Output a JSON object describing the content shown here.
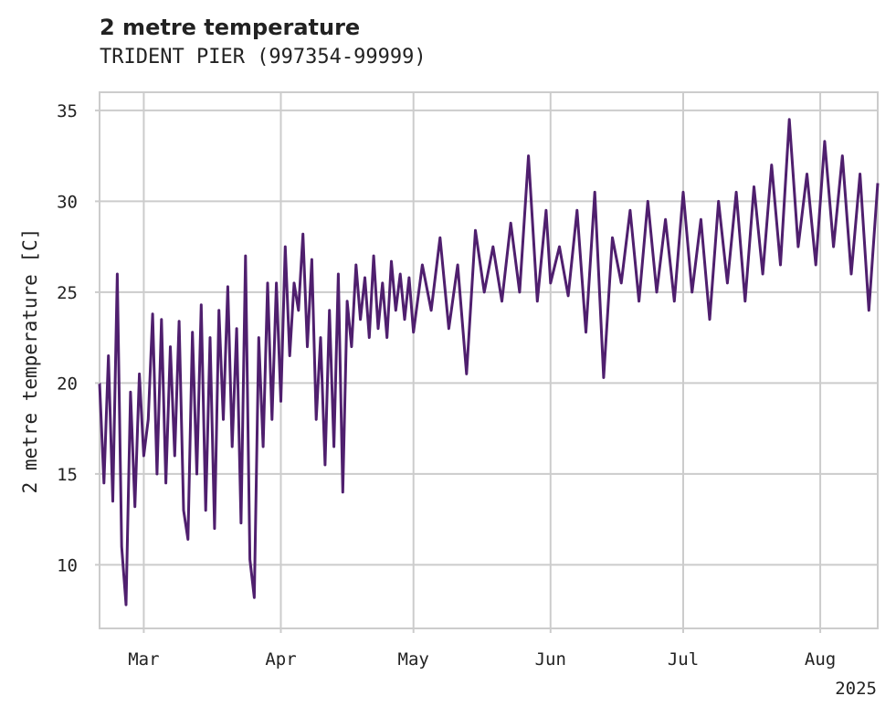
{
  "chart_data": {
    "type": "line",
    "title": "2 metre temperature",
    "subtitle": "TRIDENT PIER (997354-99999)",
    "xlabel": "",
    "ylabel": "2 metre temperature [C]",
    "x_start": "2025-02-19",
    "x_end": "2025-08-14",
    "x_ticks": [
      {
        "date": "2025-03-01",
        "label": "Mar"
      },
      {
        "date": "2025-04-01",
        "label": "Apr"
      },
      {
        "date": "2025-05-01",
        "label": "May"
      },
      {
        "date": "2025-06-01",
        "label": "Jun"
      },
      {
        "date": "2025-07-01",
        "label": "Jul"
      },
      {
        "date": "2025-08-01",
        "label": "Aug"
      }
    ],
    "x_offset_label": "2025",
    "ylim": [
      6.5,
      36
    ],
    "y_ticks": [
      10,
      15,
      20,
      25,
      30,
      35
    ],
    "grid": true,
    "legend": "none",
    "color": "#4f1f6e",
    "series": [
      {
        "x": [
          "2025-02-19",
          "2025-02-20",
          "2025-02-21",
          "2025-02-22",
          "2025-02-23",
          "2025-02-24",
          "2025-02-25",
          "2025-02-26",
          "2025-02-27",
          "2025-02-28",
          "2025-03-01",
          "2025-03-02",
          "2025-03-03",
          "2025-03-04",
          "2025-03-05",
          "2025-03-06",
          "2025-03-07",
          "2025-03-08",
          "2025-03-09",
          "2025-03-10",
          "2025-03-11",
          "2025-03-12",
          "2025-03-13",
          "2025-03-14",
          "2025-03-15",
          "2025-03-16",
          "2025-03-17",
          "2025-03-18",
          "2025-03-19",
          "2025-03-20",
          "2025-03-21",
          "2025-03-22",
          "2025-03-23",
          "2025-03-24",
          "2025-03-25",
          "2025-03-26",
          "2025-03-27",
          "2025-03-28",
          "2025-03-29",
          "2025-03-30",
          "2025-03-31",
          "2025-04-01",
          "2025-04-02",
          "2025-04-03",
          "2025-04-04",
          "2025-04-05",
          "2025-04-06",
          "2025-04-07",
          "2025-04-08",
          "2025-04-09",
          "2025-04-10",
          "2025-04-11",
          "2025-04-12",
          "2025-04-13",
          "2025-04-14",
          "2025-04-15",
          "2025-04-16",
          "2025-04-17",
          "2025-04-18",
          "2025-04-19",
          "2025-04-20",
          "2025-04-21",
          "2025-04-22",
          "2025-04-23",
          "2025-04-24",
          "2025-04-25",
          "2025-04-26",
          "2025-04-27",
          "2025-04-28",
          "2025-04-29",
          "2025-04-30",
          "2025-05-01",
          "2025-05-03",
          "2025-05-05",
          "2025-05-07",
          "2025-05-09",
          "2025-05-11",
          "2025-05-13",
          "2025-05-15",
          "2025-05-17",
          "2025-05-19",
          "2025-05-21",
          "2025-05-23",
          "2025-05-25",
          "2025-05-27",
          "2025-05-29",
          "2025-05-31",
          "2025-06-01",
          "2025-06-03",
          "2025-06-05",
          "2025-06-07",
          "2025-06-09",
          "2025-06-11",
          "2025-06-13",
          "2025-06-15",
          "2025-06-17",
          "2025-06-19",
          "2025-06-21",
          "2025-06-23",
          "2025-06-25",
          "2025-06-27",
          "2025-06-29",
          "2025-07-01",
          "2025-07-03",
          "2025-07-05",
          "2025-07-07",
          "2025-07-09",
          "2025-07-11",
          "2025-07-13",
          "2025-07-15",
          "2025-07-17",
          "2025-07-19",
          "2025-07-21",
          "2025-07-23",
          "2025-07-25",
          "2025-07-27",
          "2025-07-29",
          "2025-07-31",
          "2025-08-02",
          "2025-08-04",
          "2025-08-06",
          "2025-08-08",
          "2025-08-10",
          "2025-08-12",
          "2025-08-14"
        ],
        "values": [
          20,
          14.5,
          21.5,
          13.5,
          26,
          11,
          7.8,
          19.5,
          13.2,
          20.5,
          16,
          18,
          23.8,
          15,
          23.5,
          14.5,
          22,
          16,
          23.4,
          13,
          11.4,
          22.8,
          15,
          24.3,
          13,
          22.5,
          12,
          24,
          18,
          25.3,
          16.5,
          23,
          12.3,
          27,
          10.3,
          8.2,
          22.5,
          16.5,
          25.5,
          18,
          25.5,
          19,
          27.5,
          21.5,
          25.5,
          24,
          28.2,
          22,
          26.8,
          18,
          22.5,
          15.5,
          24,
          16.5,
          26,
          14,
          24.5,
          22,
          26.5,
          23.5,
          25.8,
          22.5,
          27,
          23,
          25.5,
          22.5,
          26.7,
          24,
          26,
          23.5,
          25.8,
          22.8,
          26.5,
          24,
          28,
          23,
          26.5,
          20.5,
          28.4,
          25,
          27.5,
          24.5,
          28.8,
          25,
          32.5,
          24.5,
          29.5,
          25.5,
          27.5,
          24.8,
          29.5,
          22.8,
          30.5,
          20.3,
          28,
          25.5,
          29.5,
          24.5,
          30,
          25,
          29,
          24.5,
          30.5,
          25,
          29,
          23.5,
          30,
          25.5,
          30.5,
          24.5,
          30.8,
          26,
          32,
          26.5,
          34.5,
          27.5,
          31.5,
          26.5,
          33.3,
          27.5,
          32.5,
          26,
          31.5,
          24,
          31
        ]
      }
    ]
  }
}
